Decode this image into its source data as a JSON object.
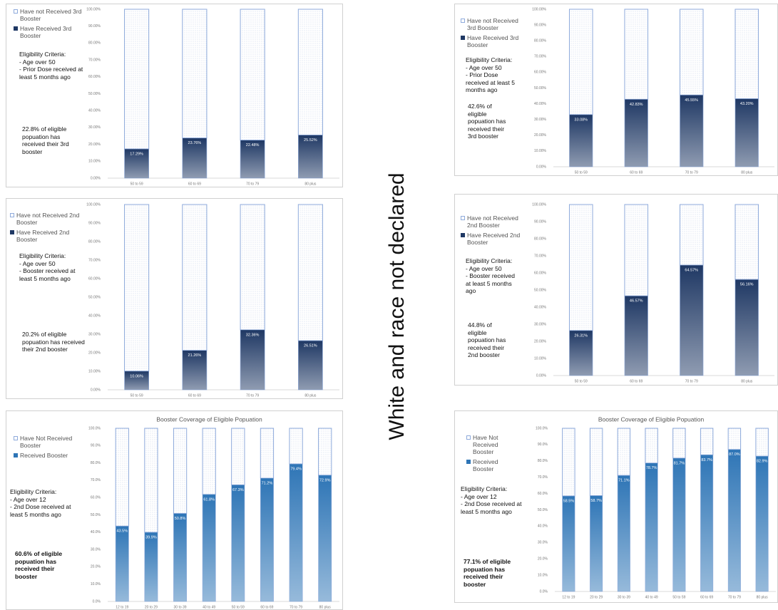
{
  "side_label": "White and race not declared",
  "chart_data": [
    {
      "type": "stacked-bar",
      "categories": [
        "50 to 59",
        "60 to 69",
        "70 to 79",
        "80 plus"
      ],
      "remainder_name": "Have not Received 3rd Booster",
      "series": [
        {
          "name": "Have Received 3rd Booster",
          "color": "#1f3864",
          "values": [
            17.29,
            23.76,
            22.48,
            25.52
          ],
          "value_labels": [
            "17.29%",
            "23.76%",
            "22.48%",
            "25.52%"
          ]
        }
      ],
      "ylim": [
        0,
        100
      ],
      "yticks": [
        {
          "value": 0,
          "label": "0.00%"
        },
        {
          "value": 10,
          "label": "10.00%"
        },
        {
          "value": 20,
          "label": "20.00%"
        },
        {
          "value": 30,
          "label": "30.00%"
        },
        {
          "value": 40,
          "label": "40.00%"
        },
        {
          "value": 50,
          "label": "50.00%"
        },
        {
          "value": 60,
          "label": "60.00%"
        },
        {
          "value": 70,
          "label": "70.00%"
        },
        {
          "value": 80,
          "label": "80.00%"
        },
        {
          "value": 90,
          "label": "90.00%"
        },
        {
          "value": 100,
          "label": "100.00%"
        }
      ],
      "criteria": "Eligibility Criteria:\n- Age over 50\n- Prior Dose received at least 5 months ago",
      "summary": "22.8% of eligible popuation has received their 3rd booster"
    },
    {
      "type": "stacked-bar",
      "categories": [
        "50 to 59",
        "60 to 69",
        "70 to 79",
        "80 plus"
      ],
      "remainder_name": "Have not Received 2nd Booster",
      "series": [
        {
          "name": "Have Received 2nd Booster",
          "color": "#1f3864",
          "values": [
            10.06,
            21.26,
            32.36,
            26.51
          ],
          "value_labels": [
            "10.06%",
            "21.26%",
            "32.36%",
            "26.51%"
          ]
        }
      ],
      "ylim": [
        0,
        100
      ],
      "yticks": [
        {
          "value": 0,
          "label": "0.00%"
        },
        {
          "value": 10,
          "label": "10.00%"
        },
        {
          "value": 20,
          "label": "20.00%"
        },
        {
          "value": 30,
          "label": "30.00%"
        },
        {
          "value": 40,
          "label": "40.00%"
        },
        {
          "value": 50,
          "label": "50.00%"
        },
        {
          "value": 60,
          "label": "60.00%"
        },
        {
          "value": 70,
          "label": "70.00%"
        },
        {
          "value": 80,
          "label": "80.00%"
        },
        {
          "value": 90,
          "label": "90.00%"
        },
        {
          "value": 100,
          "label": "100.00%"
        }
      ],
      "criteria": "Eligibility Criteria:\n- Age over 50\n- Booster received at least 5 months ago",
      "summary": "20.2% of eligible popuation has received their 2nd booster"
    },
    {
      "type": "stacked-bar",
      "title": "Booster Coverage of Eligible Popuation",
      "categories": [
        "12 to 19",
        "20 to 29",
        "30 to 39",
        "40 to 49",
        "50 to 59",
        "60 to 69",
        "70 to 79",
        "80 plus"
      ],
      "remainder_name": "Have Not Received Booster",
      "series": [
        {
          "name": "Received Booster",
          "color": "#2e75b6",
          "values": [
            43.5,
            39.9,
            50.8,
            61.8,
            67.3,
            71.2,
            79.4,
            72.9
          ],
          "value_labels": [
            "43.5%",
            "39.9%",
            "50.8%",
            "61.8%",
            "67.3%",
            "71.2%",
            "79.4%",
            "72.9%"
          ]
        }
      ],
      "ylim": [
        0,
        100
      ],
      "yticks": [
        {
          "value": 0,
          "label": "0.0%"
        },
        {
          "value": 10,
          "label": "10.0%"
        },
        {
          "value": 20,
          "label": "20.0%"
        },
        {
          "value": 30,
          "label": "30.0%"
        },
        {
          "value": 40,
          "label": "40.0%"
        },
        {
          "value": 50,
          "label": "50.0%"
        },
        {
          "value": 60,
          "label": "60.0%"
        },
        {
          "value": 70,
          "label": "70.0%"
        },
        {
          "value": 80,
          "label": "80.0%"
        },
        {
          "value": 90,
          "label": "90.0%"
        },
        {
          "value": 100,
          "label": "100.0%"
        }
      ],
      "criteria": "Eligibility Criteria:\n- Age over 12\n- 2nd Dose received at least 5 months ago",
      "summary": "60.6% of eligible popuation has received their booster"
    },
    {
      "type": "stacked-bar",
      "categories": [
        "50 to 59",
        "60 to 69",
        "70 to 79",
        "80 plus"
      ],
      "remainder_name": "Have not Received 3rd Booster",
      "series": [
        {
          "name": "Have Received 3rd Booster",
          "color": "#1f3864",
          "values": [
            33.08,
            42.83,
            45.55,
            43.2
          ],
          "value_labels": [
            "33.08%",
            "42.83%",
            "45.55%",
            "43.20%"
          ]
        }
      ],
      "ylim": [
        0,
        100
      ],
      "yticks": [
        {
          "value": 0,
          "label": "0.00%"
        },
        {
          "value": 10,
          "label": "10.00%"
        },
        {
          "value": 20,
          "label": "20.00%"
        },
        {
          "value": 30,
          "label": "30.00%"
        },
        {
          "value": 40,
          "label": "40.00%"
        },
        {
          "value": 50,
          "label": "50.00%"
        },
        {
          "value": 60,
          "label": "60.00%"
        },
        {
          "value": 70,
          "label": "70.00%"
        },
        {
          "value": 80,
          "label": "80.00%"
        },
        {
          "value": 90,
          "label": "90.00%"
        },
        {
          "value": 100,
          "label": "100.00%"
        }
      ],
      "criteria": "Eligibility Criteria:\n- Age over 50\n- Prior Dose received at least 5 months ago",
      "summary": "42.6% of eligible popuation has received their 3rd booster"
    },
    {
      "type": "stacked-bar",
      "categories": [
        "50 to 59",
        "60 to 69",
        "70 to 79",
        "80 plus"
      ],
      "remainder_name": "Have not Received 2nd Booster",
      "series": [
        {
          "name": "Have Received 2nd Booster",
          "color": "#1f3864",
          "values": [
            26.31,
            46.57,
            64.57,
            56.16
          ],
          "value_labels": [
            "26.31%",
            "46.57%",
            "64.57%",
            "56.16%"
          ]
        }
      ],
      "ylim": [
        0,
        100
      ],
      "yticks": [
        {
          "value": 0,
          "label": "0.00%"
        },
        {
          "value": 10,
          "label": "10.00%"
        },
        {
          "value": 20,
          "label": "20.00%"
        },
        {
          "value": 30,
          "label": "30.00%"
        },
        {
          "value": 40,
          "label": "40.00%"
        },
        {
          "value": 50,
          "label": "50.00%"
        },
        {
          "value": 60,
          "label": "60.00%"
        },
        {
          "value": 70,
          "label": "70.00%"
        },
        {
          "value": 80,
          "label": "80.00%"
        },
        {
          "value": 90,
          "label": "90.00%"
        },
        {
          "value": 100,
          "label": "100.00%"
        }
      ],
      "criteria": "Eligibility Criteria:\n- Age over 50\n- Booster received at least 5 months ago",
      "summary": "44.8% of eligible popuation has received their 2nd booster"
    },
    {
      "type": "stacked-bar",
      "title": "Booster Coverage of Eligible Popuation",
      "categories": [
        "12 to 19",
        "20 to 29",
        "30 to 39",
        "40 to 49",
        "50 to 59",
        "60 to 69",
        "70 to 79",
        "80 plus"
      ],
      "remainder_name": "Have Not Received Booster",
      "series": [
        {
          "name": "Received Booster",
          "color": "#2e75b6",
          "values": [
            58.5,
            58.7,
            71.1,
            78.7,
            81.7,
            83.7,
            87.0,
            82.9
          ],
          "value_labels": [
            "58.5%",
            "58.7%",
            "71.1%",
            "78.7%",
            "81.7%",
            "83.7%",
            "87.0%",
            "82.9%"
          ]
        }
      ],
      "ylim": [
        0,
        100
      ],
      "yticks": [
        {
          "value": 0,
          "label": "0.0%"
        },
        {
          "value": 10,
          "label": "10.0%"
        },
        {
          "value": 20,
          "label": "20.0%"
        },
        {
          "value": 30,
          "label": "30.0%"
        },
        {
          "value": 40,
          "label": "40.0%"
        },
        {
          "value": 50,
          "label": "50.0%"
        },
        {
          "value": 60,
          "label": "60.0%"
        },
        {
          "value": 70,
          "label": "70.0%"
        },
        {
          "value": 80,
          "label": "80.0%"
        },
        {
          "value": 90,
          "label": "90.0%"
        },
        {
          "value": 100,
          "label": "100.0%"
        }
      ],
      "criteria": "Eligibility Criteria:\n- Age over 12\n- 2nd Dose received at least 5 months ago",
      "summary": "77.1% of eligible popuation has received their booster"
    }
  ]
}
